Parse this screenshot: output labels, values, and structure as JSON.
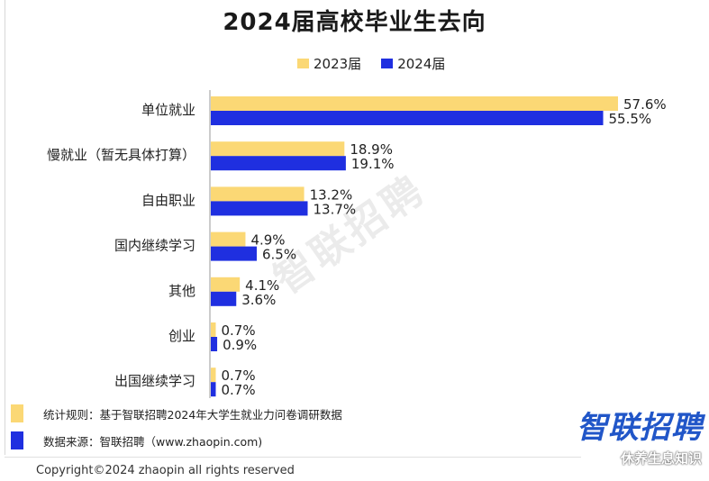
{
  "title": "2024届高校毕业生去向",
  "legend": [
    {
      "label": "2023届",
      "color": "#fbd875"
    },
    {
      "label": "2024届",
      "color": "#1f2fe0"
    }
  ],
  "chart_data": {
    "type": "bar",
    "orientation": "horizontal",
    "title": "2024届高校毕业生去向",
    "categories": [
      "单位就业",
      "慢就业（暂无具体打算）",
      "自由职业",
      "国内继续学习",
      "其他",
      "创业",
      "出国继续学习"
    ],
    "series": [
      {
        "name": "2023届",
        "color": "#fbd875",
        "values": [
          57.6,
          18.9,
          13.2,
          4.9,
          4.1,
          0.7,
          0.7
        ],
        "labels": [
          "57.6%",
          "18.9%",
          "13.2%",
          "4.9%",
          "4.1%",
          "0.7%",
          "0.7%"
        ]
      },
      {
        "name": "2024届",
        "color": "#1f2fe0",
        "values": [
          55.5,
          19.1,
          13.7,
          6.5,
          3.6,
          0.9,
          0.7
        ],
        "labels": [
          "55.5%",
          "19.1%",
          "13.7%",
          "6.5%",
          "3.6%",
          "0.9%",
          "0.7%"
        ]
      }
    ],
    "unit": "%",
    "xlim": [
      0,
      60
    ],
    "legend_position": "top-center",
    "grid": false
  },
  "notes": [
    {
      "text": "统计规则：基于智联招聘2024年大学生就业力问卷调研数据",
      "color": "#fbd875"
    },
    {
      "text": "数据来源：智联招聘（www.zhaopin.com)",
      "color": "#1f2fe0"
    }
  ],
  "brand": "智联招聘",
  "watermark": "智联招聘",
  "copyright": "Copyright©2024 zhaopin all rights reserved",
  "corner_mark": "休养生息知识"
}
